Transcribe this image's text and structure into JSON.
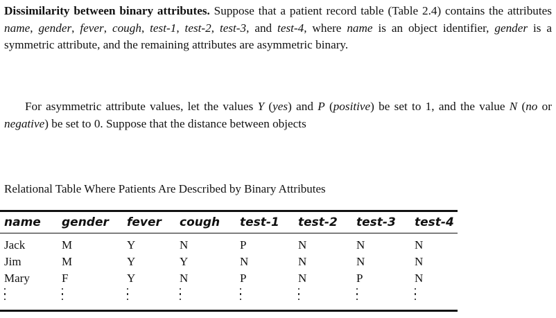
{
  "intro_paragraph": {
    "heading": "Dissimilarity between binary attributes.",
    "t1": " Suppose that a patient record table (Table 2.4) contains the attributes ",
    "attr_name": "name",
    "sep1": ", ",
    "attr_gender": "gender",
    "sep2": ", ",
    "attr_fever": "fever",
    "sep3": ", ",
    "attr_cough": "cough",
    "sep4": ", ",
    "attr_test1": "test-1",
    "sep5": ", ",
    "attr_test2": "test-2",
    "sep6": ", ",
    "attr_test3": "test-3",
    "sep7": ", and ",
    "attr_test4": "test-4",
    "t2": ", where ",
    "name_ref": "name",
    "t3": " is an object identifier, ",
    "gender_ref": "gender",
    "t4": " is a symmetric attribute, and the remaining attributes are asymmetric binary."
  },
  "second_paragraph": {
    "t1": "For asymmetric attribute values, let the values ",
    "y_sym": "Y",
    "t2": " (",
    "yes_word": "yes",
    "t3": ") and ",
    "p_sym": "P",
    "t4": " (",
    "positive_word": "positive",
    "t5": ") be set to 1, and the value ",
    "n_sym": "N",
    "t6": " (",
    "no_word": "no",
    "t7": " or ",
    "negative_word": "negative",
    "t8": ") be set to 0. Suppose that the distance between objects"
  },
  "table": {
    "caption": "Relational Table Where Patients Are Described by Binary Attributes",
    "headers": [
      "name",
      "gender",
      "fever",
      "cough",
      "test-1",
      "test-2",
      "test-3",
      "test-4"
    ],
    "rows": [
      [
        "Jack",
        "M",
        "Y",
        "N",
        "P",
        "N",
        "N",
        "N"
      ],
      [
        "Jim",
        "M",
        "Y",
        "Y",
        "N",
        "N",
        "N",
        "N"
      ],
      [
        "Mary",
        "F",
        "Y",
        "N",
        "P",
        "N",
        "P",
        "N"
      ]
    ]
  }
}
